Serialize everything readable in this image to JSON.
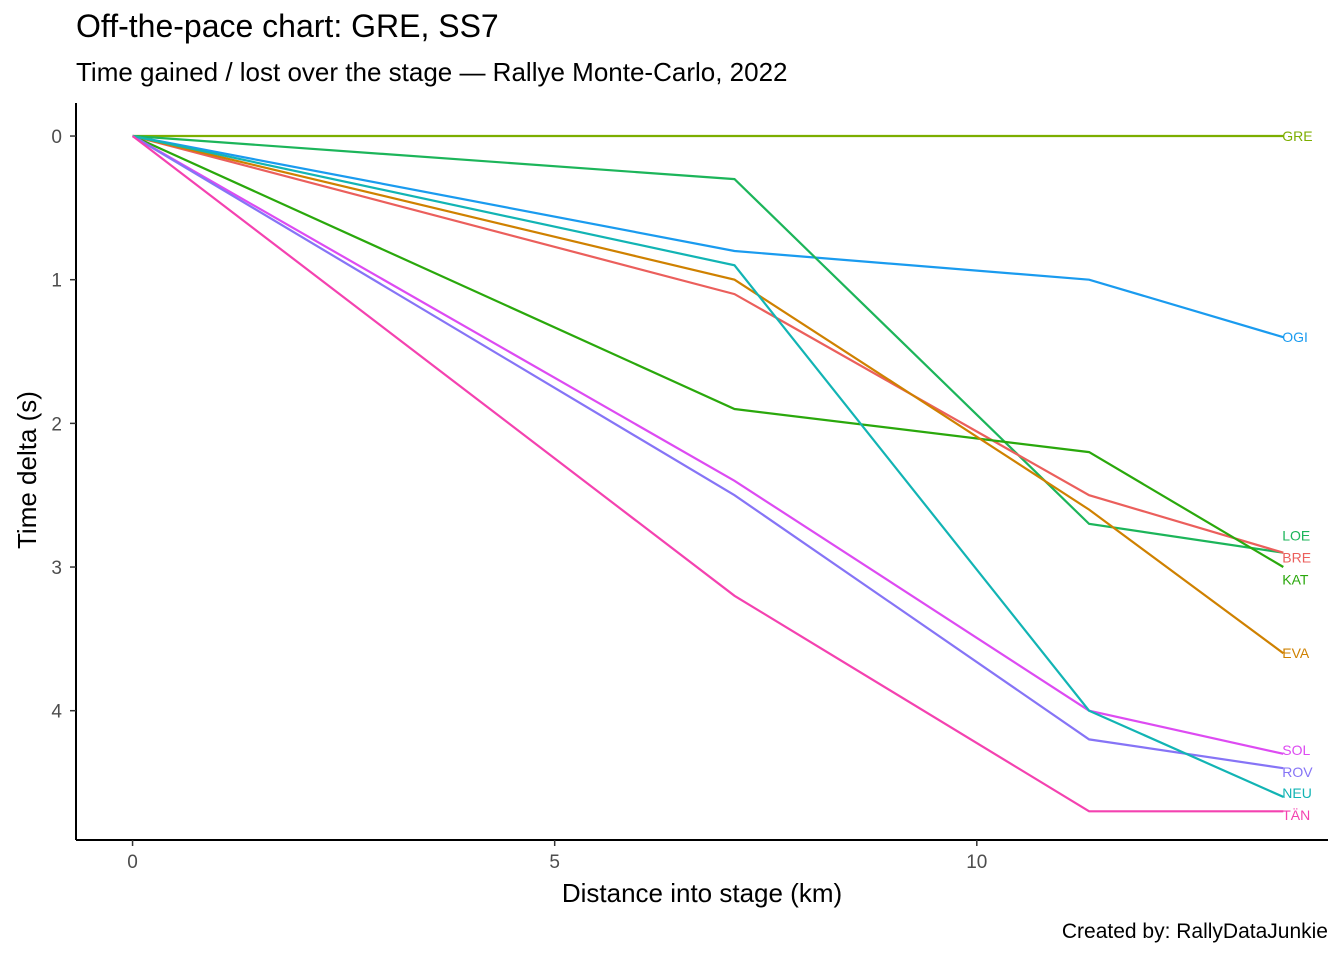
{
  "chart_data": {
    "type": "line",
    "title": "Off-the-pace chart: GRE, SS7",
    "subtitle": "Time gained / lost over the stage — Rallye Monte-Carlo, 2022",
    "caption": "Created by: RallyDataJunkie",
    "xlabel": "Distance into stage (km)",
    "ylabel": "Time delta (s)",
    "xlim": [
      -0.67,
      14.16
    ],
    "ylim": [
      -0.23,
      4.9
    ],
    "y_reversed": true,
    "x_ticks": [
      0,
      5,
      10
    ],
    "y_ticks": [
      0,
      1,
      2,
      3,
      4
    ],
    "grid": false,
    "legend": "none (direct end labels)",
    "x": [
      0,
      7.13,
      11.33,
      13.63
    ],
    "series": [
      {
        "name": "GRE",
        "color": "#7CAE00",
        "values": [
          0,
          0,
          0,
          0
        ]
      },
      {
        "name": "OGI",
        "color": "#1A9BEF",
        "values": [
          0,
          0.8,
          1.0,
          1.4
        ]
      },
      {
        "name": "LOE",
        "color": "#1CB55A",
        "values": [
          0,
          0.3,
          2.7,
          2.9
        ]
      },
      {
        "name": "BRE",
        "color": "#EB5F5C",
        "values": [
          0,
          1.1,
          2.5,
          2.9
        ]
      },
      {
        "name": "KAT",
        "color": "#2AA80C",
        "values": [
          0,
          1.9,
          2.2,
          3.0
        ]
      },
      {
        "name": "EVA",
        "color": "#CF8100",
        "values": [
          0,
          1.0,
          2.6,
          3.6
        ]
      },
      {
        "name": "SOL",
        "color": "#DD4BF2",
        "values": [
          0,
          2.4,
          4.0,
          4.3
        ]
      },
      {
        "name": "ROV",
        "color": "#8674F6",
        "values": [
          0,
          2.5,
          4.2,
          4.4
        ]
      },
      {
        "name": "NEU",
        "color": "#12B4B4",
        "values": [
          0,
          0.9,
          4.0,
          4.6
        ]
      },
      {
        "name": "TÄN",
        "color": "#F442B0",
        "values": [
          0,
          3.2,
          4.7,
          4.7
        ]
      }
    ]
  }
}
